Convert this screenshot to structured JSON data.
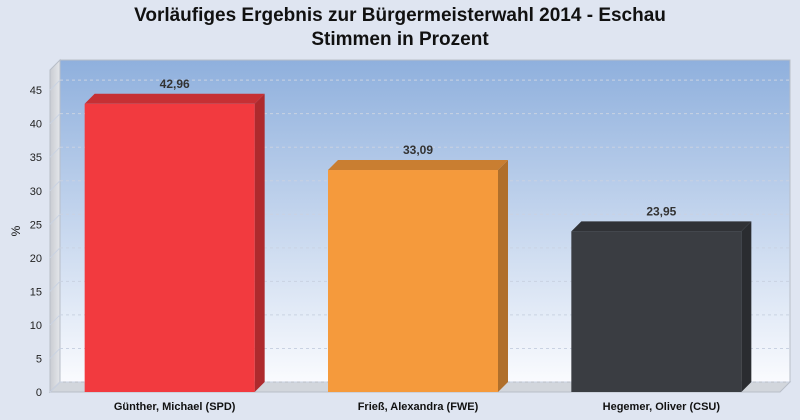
{
  "chart_data": {
    "type": "bar",
    "title": "Vorläufiges Ergebnis zur Bürgermeisterwahl 2014 - Eschau",
    "subtitle": "Stimmen in Prozent",
    "ylabel": "%",
    "xlabel": "",
    "ylim": [
      0,
      48
    ],
    "yticks": [
      0,
      5,
      10,
      15,
      20,
      25,
      30,
      35,
      40,
      45
    ],
    "grid": true,
    "categories": [
      "Günther, Michael (SPD)",
      "Frieß, Alexandra (FWE)",
      "Hegemer, Oliver (CSU)"
    ],
    "values": [
      42.96,
      33.09,
      23.95
    ],
    "value_labels": [
      "42,96",
      "33,09",
      "23,95"
    ],
    "colors": [
      "#f23a3f",
      "#f59a3c",
      "#3a3d42"
    ]
  }
}
